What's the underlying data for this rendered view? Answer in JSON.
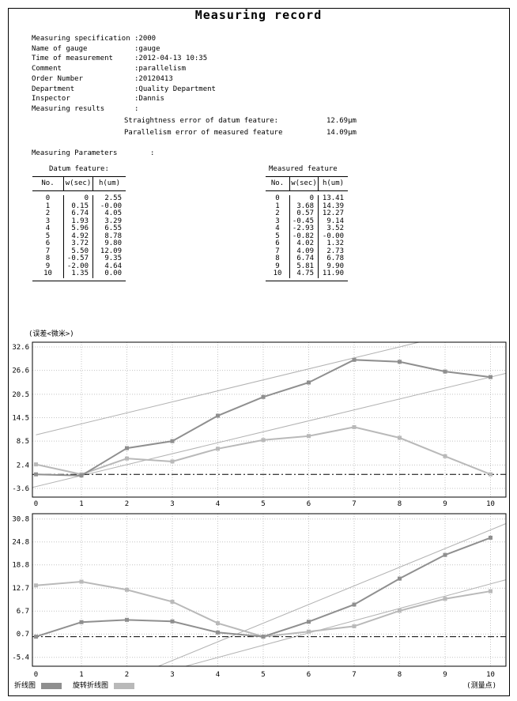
{
  "page": {
    "title": "Measuring record"
  },
  "fields": [
    {
      "label": "Measuring specification",
      "value": ":2000"
    },
    {
      "label": "Name of gauge",
      "value": ":gauge"
    },
    {
      "label": "Time of measurement",
      "value": ":2012-04-13 10:35"
    },
    {
      "label": "Comment",
      "value": ":parallelism"
    },
    {
      "label": "Order Number",
      "value": ":20120413"
    },
    {
      "label": "Department",
      "value": ":Quality Department"
    },
    {
      "label": "Inspector",
      "value": ":Dannis"
    },
    {
      "label": "Measuring results",
      "value": ":"
    }
  ],
  "results": [
    {
      "label": "Straightness error of datum feature:",
      "value": "12.69μm"
    },
    {
      "label": "Parallelism error of measured feature",
      "value": "14.09μm"
    }
  ],
  "parameters": {
    "label": "Measuring Parameters",
    "colon": ":",
    "tables": [
      {
        "title": "Datum feature:",
        "headers": [
          "No.",
          "w(sec)",
          "h(um)"
        ],
        "rows": [
          [
            "0",
            "0",
            "2.55"
          ],
          [
            "1",
            "0.15",
            "-0.00"
          ],
          [
            "2",
            "6.74",
            "4.05"
          ],
          [
            "3",
            "1.93",
            "3.29"
          ],
          [
            "4",
            "5.96",
            "6.55"
          ],
          [
            "5",
            "4.92",
            "8.78"
          ],
          [
            "6",
            "3.72",
            "9.80"
          ],
          [
            "7",
            "5.50",
            "12.09"
          ],
          [
            "8",
            "-0.57",
            "9.35"
          ],
          [
            "9",
            "-2.00",
            "4.64"
          ],
          [
            "10",
            "1.35",
            "0.00"
          ]
        ]
      },
      {
        "title": "Measured feature",
        "headers": [
          "No.",
          "w(sec)",
          "h(um)"
        ],
        "rows": [
          [
            "0",
            "0",
            "13.41"
          ],
          [
            "1",
            "3.68",
            "14.39"
          ],
          [
            "2",
            "0.57",
            "12.27"
          ],
          [
            "3",
            "-0.45",
            "9.14"
          ],
          [
            "4",
            "-2.93",
            "3.52"
          ],
          [
            "5",
            "-0.82",
            "-0.00"
          ],
          [
            "6",
            "4.02",
            "1.32"
          ],
          [
            "7",
            "4.09",
            "2.73"
          ],
          [
            "8",
            "6.74",
            "6.78"
          ],
          [
            "9",
            "5.81",
            "9.90"
          ],
          [
            "10",
            "4.75",
            "11.90"
          ]
        ]
      }
    ]
  },
  "chart_data": [
    {
      "type": "line",
      "ylabel": "(误差<微米>)",
      "x": [
        0,
        1,
        2,
        3,
        4,
        5,
        6,
        7,
        8,
        9,
        10
      ],
      "yticks": [
        32.6,
        26.6,
        20.5,
        14.5,
        8.5,
        2.4,
        -3.6
      ],
      "ylim": [
        -3.6,
        32.6
      ],
      "grid": true,
      "series": [
        {
          "name": "折线图",
          "color": "#8f8f8f",
          "values": [
            0,
            -0.3,
            6.7,
            8.5,
            15.0,
            19.8,
            23.5,
            29.3,
            28.8,
            26.3,
            24.9
          ]
        },
        {
          "name": "旋转折线图",
          "color": "#b9b9b9",
          "values": [
            2.55,
            -0.0,
            4.05,
            3.29,
            6.55,
            8.78,
            9.8,
            12.09,
            9.35,
            4.64,
            0.0
          ]
        }
      ],
      "envelope_lines": [
        {
          "from": [
            0,
            10.1
          ],
          "to": [
            10.34,
            39.2
          ]
        },
        {
          "from": [
            -0.08,
            -3.35
          ],
          "to": [
            10.34,
            25.85
          ]
        }
      ],
      "zero_line": 0
    },
    {
      "type": "line",
      "ylabel": "",
      "x": [
        0,
        1,
        2,
        3,
        4,
        5,
        6,
        7,
        8,
        9,
        10
      ],
      "yticks": [
        30.8,
        24.8,
        18.8,
        12.7,
        6.7,
        0.7,
        -5.4
      ],
      "ylim": [
        -5.4,
        30.8
      ],
      "grid": true,
      "series": [
        {
          "name": "折线图",
          "color": "#8f8f8f",
          "values": [
            0,
            3.8,
            4.4,
            4.0,
            1.1,
            0,
            3.9,
            8.4,
            15.2,
            21.4,
            25.9
          ]
        },
        {
          "name": "旋转折线图",
          "color": "#b9b9b9",
          "values": [
            13.41,
            14.39,
            12.27,
            9.14,
            3.52,
            0.0,
            1.32,
            2.73,
            6.78,
            9.9,
            11.9
          ]
        }
      ],
      "envelope_lines": [
        {
          "from": [
            2.7,
            -7.7
          ],
          "to": [
            10.34,
            29.6
          ]
        },
        {
          "from": [
            3.3,
            -7.7
          ],
          "to": [
            10.34,
            14.9
          ]
        }
      ],
      "zero_line": 0
    }
  ],
  "legend": {
    "items": [
      {
        "label": "折线图",
        "color": "#8f8f8f"
      },
      {
        "label": "旋转折线图",
        "color": "#b9b9b9"
      }
    ],
    "right_label": "(测量点)"
  }
}
